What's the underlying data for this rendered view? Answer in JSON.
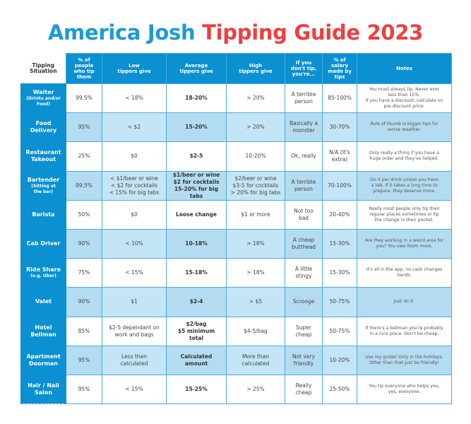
{
  "title": {
    "part1": "America Josh",
    "part2": "Tipping Guide 2023",
    "colors": {
      "part1": "#1b9ad6",
      "part2": "#ee3f3f"
    }
  },
  "colors": {
    "header_bg": "#0b90d1",
    "border": "#4aaadd",
    "shaded_row": "#c4e5f6",
    "shaded_row_alt": "#b4dcf1"
  },
  "table": {
    "columns": [
      [
        "Tipping",
        "Situation"
      ],
      [
        "% of",
        "people",
        "who tip",
        "them"
      ],
      [
        "Low",
        "tippers give"
      ],
      [
        "Average",
        "tippers give"
      ],
      [
        "High",
        "tippers give"
      ],
      [
        "If you",
        "don't tip,",
        "you're..."
      ],
      [
        "% of",
        "salary",
        "made by",
        "tips"
      ],
      [
        "Notes"
      ]
    ],
    "rows": [
      {
        "situation": "Waiter",
        "situation_sub": [
          "(Drinks and/or",
          "Food)"
        ],
        "pct_tip": "99.5%",
        "low": [
          "< 18%"
        ],
        "average": [
          "18-20%"
        ],
        "high": [
          "> 20%"
        ],
        "dont_tip": [
          "A terrible",
          "person"
        ],
        "salary_pct": "85-100%",
        "notes": [
          "You must always tip. Never ever",
          "less than 15%.",
          "If you have a discount, calculate on",
          "pre-discount price."
        ]
      },
      {
        "situation": "Food",
        "situation2": "Delivery",
        "situation_sub": [],
        "pct_tip": "95%",
        "low": [
          "< $2"
        ],
        "average": [
          "15-20%"
        ],
        "high": [
          "> 20%"
        ],
        "dont_tip": [
          "Basically a",
          "monster"
        ],
        "salary_pct": "30-70%",
        "notes": [
          "Rule of thumb is bigger tips for",
          "worse weather."
        ]
      },
      {
        "situation": "Restaurant",
        "situation2": "Takeout",
        "situation_sub": [],
        "pct_tip": "25%",
        "low": [
          "$0"
        ],
        "average": [
          "$2-5"
        ],
        "high": [
          "10-20%"
        ],
        "dont_tip": [
          "Ok, really"
        ],
        "salary_pct": "N/A (It's extra)",
        "salary_pct_lines": [
          "N/A (It's",
          "extra)"
        ],
        "notes": [
          "Only really a thing if you have a",
          "huge order and they've helped."
        ]
      },
      {
        "situation": "Bartender",
        "situation_sub": [
          "(Sitting at",
          "the bar)"
        ],
        "pct_tip": "99.5%",
        "low": [
          "< $1/beer or wine",
          "< $2 for cocktails",
          "< 15% for big tabs"
        ],
        "average": [
          "$1/beer or wine",
          "$2 for cocktails",
          "15-20% for big tabs"
        ],
        "high": [
          "$2/beer or wine",
          "$3-5 for cocktails",
          "> 20% for big tabs"
        ],
        "dont_tip": [
          "A terrible",
          "person"
        ],
        "salary_pct": "70-100%",
        "notes": [
          "Do it per drink unless you have",
          "a tab. If it takes a long time to",
          "prepare, they deserve more."
        ]
      },
      {
        "situation": "Barista",
        "situation_sub": [],
        "pct_tip": "50%",
        "low": [
          "$0"
        ],
        "average": [
          "Loose change"
        ],
        "high": [
          "$1 or more"
        ],
        "dont_tip": [
          "Not too",
          "bad"
        ],
        "salary_pct": "20-40%",
        "notes": [
          "Really most people only tip their",
          "regular places sometimes or tip",
          "the change in their pocket."
        ]
      },
      {
        "situation": "Cab Driver",
        "situation_sub": [],
        "pct_tip": "90%",
        "low": [
          "< 10%"
        ],
        "average": [
          "10-18%"
        ],
        "high": [
          "> 18%"
        ],
        "dont_tip": [
          "A cheap",
          "butthead"
        ],
        "salary_pct": "15-30%",
        "notes": [
          "Are they working in a weird area for",
          "you? You owe them more."
        ]
      },
      {
        "situation": "Ride Share",
        "situation_sub": [
          "(e.g. Uber)"
        ],
        "pct_tip": "75%",
        "low": [
          "< 15%"
        ],
        "average": [
          "15-18%"
        ],
        "high": [
          "> 18%"
        ],
        "dont_tip": [
          "A little",
          "stingy"
        ],
        "salary_pct": "15-30%",
        "notes": [
          "It's all in the app, no cash changes",
          "hands."
        ]
      },
      {
        "situation": "Valet",
        "situation_sub": [],
        "pct_tip": "90%",
        "low": [
          "$1"
        ],
        "average": [
          "$2-4"
        ],
        "high": [
          "> $5"
        ],
        "dont_tip": [
          "Scrooge"
        ],
        "salary_pct": "50-75%",
        "notes": [
          "Just do it."
        ]
      },
      {
        "situation": "Hotel",
        "situation2": "Bellman",
        "situation_sub": [],
        "pct_tip": "85%",
        "low": [
          "$2-5 dependant on",
          "work and bags"
        ],
        "average": [
          "$2/bag",
          "$5 minimum",
          "total"
        ],
        "high": [
          "$4-5/bag"
        ],
        "dont_tip": [
          "Super",
          "cheap"
        ],
        "salary_pct": "50-75%",
        "notes": [
          "If there's a bellman you're probably",
          "in a nice place. Don't be cheap."
        ]
      },
      {
        "situation": "Apartment",
        "situation2": "Doorman",
        "situation_sub": [],
        "pct_tip": "95%",
        "low": [
          "Less than",
          "calculated"
        ],
        "average": [
          "Calculated",
          "amount"
        ],
        "high": [
          "More than",
          "calculated"
        ],
        "dont_tip": [
          "Not very",
          "friendly"
        ],
        "salary_pct": "10-20%",
        "notes": [
          "Use my guide! Only in the holidays.",
          "Other than that just be friendly!"
        ]
      },
      {
        "situation": "Hair / Nail",
        "situation2": "Salon",
        "situation_sub": [],
        "pct_tip": "95%",
        "low": [
          "< 15%"
        ],
        "average": [
          "15-25%"
        ],
        "high": [
          "> 25%"
        ],
        "dont_tip": [
          "Really",
          "cheap"
        ],
        "salary_pct": "25-50%",
        "notes": [
          "You tip everyone who helps you,",
          "yes, everyone."
        ]
      }
    ]
  }
}
